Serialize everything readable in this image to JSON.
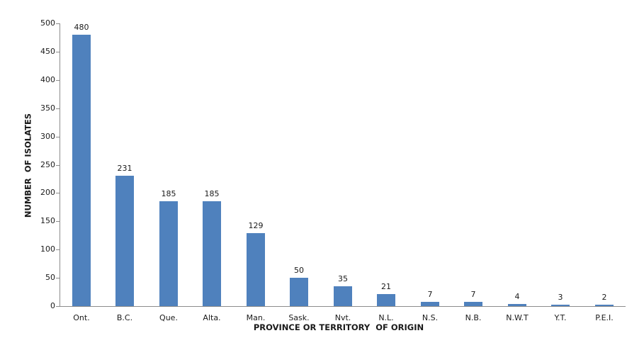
{
  "chart_data": {
    "type": "bar",
    "title": "",
    "categories": [
      "Ont.",
      "B.C.",
      "Que.",
      "Alta.",
      "Man.",
      "Sask.",
      "Nvt.",
      "N.L.",
      "N.S.",
      "N.B.",
      "N.W.T",
      "Y.T.",
      "P.E.I."
    ],
    "values": [
      480,
      231,
      185,
      185,
      129,
      50,
      35,
      21,
      7,
      7,
      4,
      3,
      2
    ],
    "xlabel": "PROVINCE OR TERRITORY  OF ORIGIN",
    "ylabel": "NUMBER  OF ISOLATES",
    "ylim": [
      0,
      500
    ],
    "yticks": [
      0,
      50,
      100,
      150,
      200,
      250,
      300,
      350,
      400,
      450,
      500
    ],
    "grid": false,
    "legend": false,
    "data_labels": true,
    "colors": {
      "bar_fill": "#4f81bd",
      "axis_line": "#8c8c8c",
      "text": "#1a1a1a",
      "background": "#ffffff"
    }
  }
}
